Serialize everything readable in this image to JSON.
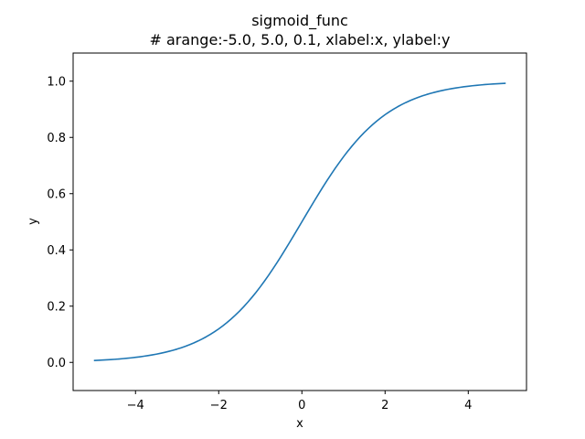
{
  "chart_data": {
    "type": "line",
    "title": "sigmoid_func",
    "subtitle": "# arange:-5.0, 5.0, 0.1, xlabel:x, ylabel:y",
    "xlabel": "x",
    "ylabel": "y",
    "xlim": [
      -5.5,
      5.4
    ],
    "ylim": [
      -0.1,
      1.1
    ],
    "xticks": [
      -4,
      -2,
      0,
      2,
      4
    ],
    "xtick_labels": [
      "−4",
      "−2",
      "0",
      "2",
      "4"
    ],
    "yticks": [
      0.0,
      0.2,
      0.4,
      0.6,
      0.8,
      1.0
    ],
    "ytick_labels": [
      "0.0",
      "0.2",
      "0.4",
      "0.6",
      "0.8",
      "1.0"
    ],
    "grid": false,
    "series": [
      {
        "color": "#1f77b4",
        "x": [
          -5.0,
          -4.9,
          -4.8,
          -4.7,
          -4.6,
          -4.5,
          -4.4,
          -4.3,
          -4.2,
          -4.1,
          -4.0,
          -3.9,
          -3.8,
          -3.7,
          -3.6,
          -3.5,
          -3.4,
          -3.3,
          -3.2,
          -3.1,
          -3.0,
          -2.9,
          -2.8,
          -2.7,
          -2.6,
          -2.5,
          -2.4,
          -2.3,
          -2.2,
          -2.1,
          -2.0,
          -1.9,
          -1.8,
          -1.7,
          -1.6,
          -1.5,
          -1.4,
          -1.3,
          -1.2,
          -1.1,
          -1.0,
          -0.9,
          -0.8,
          -0.7,
          -0.6,
          -0.5,
          -0.4,
          -0.3,
          -0.2,
          -0.1,
          0.0,
          0.1,
          0.2,
          0.3,
          0.4,
          0.5,
          0.6,
          0.7,
          0.8,
          0.9,
          1.0,
          1.1,
          1.2,
          1.3,
          1.4,
          1.5,
          1.6,
          1.7,
          1.8,
          1.9,
          2.0,
          2.1,
          2.2,
          2.3,
          2.4,
          2.5,
          2.6,
          2.7,
          2.8,
          2.9,
          3.0,
          3.1,
          3.2,
          3.3,
          3.4,
          3.5,
          3.6,
          3.7,
          3.8,
          3.9,
          4.0,
          4.1,
          4.2,
          4.3,
          4.4,
          4.5,
          4.6,
          4.7,
          4.8,
          4.9
        ],
        "y": [
          0.0067,
          0.0074,
          0.0082,
          0.009,
          0.01,
          0.011,
          0.0121,
          0.0134,
          0.0148,
          0.0163,
          0.018,
          0.0198,
          0.0219,
          0.0241,
          0.0266,
          0.0293,
          0.0323,
          0.0356,
          0.0392,
          0.0431,
          0.0474,
          0.0522,
          0.0573,
          0.063,
          0.0691,
          0.0759,
          0.0832,
          0.0911,
          0.0998,
          0.1091,
          0.1192,
          0.1301,
          0.1419,
          0.1545,
          0.168,
          0.1824,
          0.1978,
          0.2142,
          0.2315,
          0.2497,
          0.2689,
          0.2891,
          0.31,
          0.3318,
          0.3543,
          0.3775,
          0.4013,
          0.4256,
          0.4502,
          0.475,
          0.5,
          0.525,
          0.5498,
          0.5744,
          0.5987,
          0.6225,
          0.6457,
          0.6682,
          0.69,
          0.7109,
          0.7311,
          0.7503,
          0.7685,
          0.7858,
          0.8022,
          0.8176,
          0.832,
          0.8455,
          0.8581,
          0.8699,
          0.8808,
          0.8909,
          0.9002,
          0.9089,
          0.9168,
          0.9241,
          0.9309,
          0.937,
          0.9427,
          0.9478,
          0.9526,
          0.9569,
          0.9608,
          0.9644,
          0.9677,
          0.9707,
          0.9734,
          0.9759,
          0.9781,
          0.9802,
          0.982,
          0.9837,
          0.9852,
          0.9866,
          0.9879,
          0.989,
          0.99,
          0.991,
          0.9918,
          0.9926
        ]
      }
    ]
  }
}
